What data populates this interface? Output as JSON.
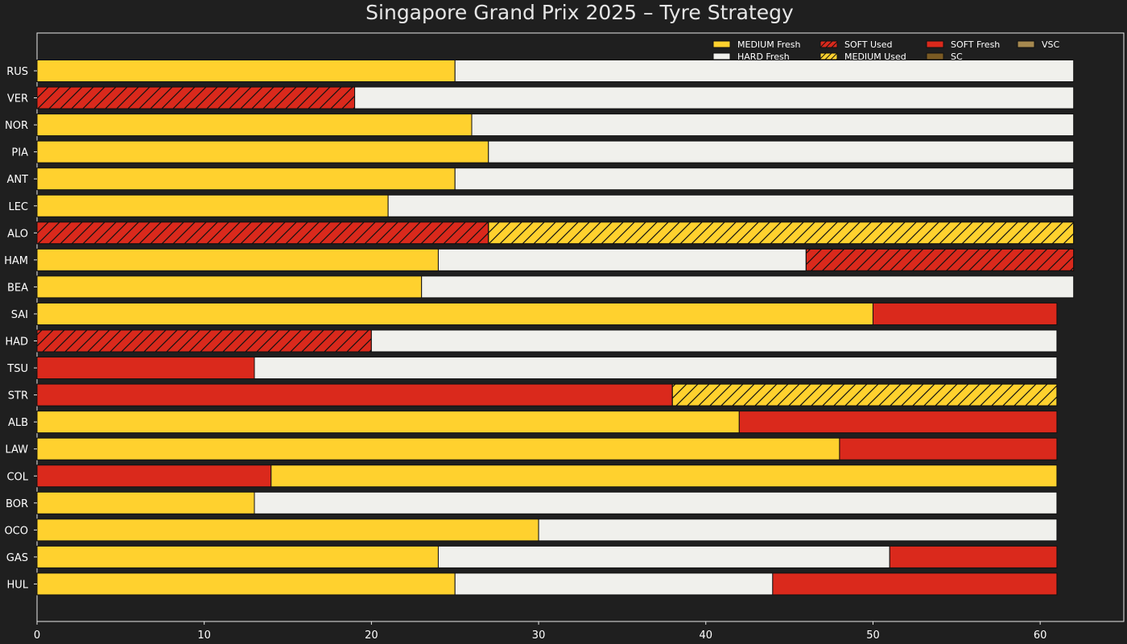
{
  "chart_data": {
    "type": "bar",
    "orientation": "horizontal-stacked",
    "title": "Singapore Grand Prix 2025  –  Tyre Strategy",
    "xlabel": "",
    "ylabel": "",
    "xlim": [
      0,
      65
    ],
    "x_ticks": [
      0,
      10,
      20,
      30,
      40,
      50,
      60
    ],
    "grid": false,
    "legend_position": "top-right",
    "compounds": {
      "MEDIUM": "#ffd12e",
      "HARD": "#f0f0ec",
      "SOFT": "#da291c",
      "SC": "#7a5a23",
      "VSC": "#a6894f"
    },
    "legend": [
      {
        "label": "MEDIUM Fresh",
        "compound": "MEDIUM",
        "used": false
      },
      {
        "label": "HARD Fresh",
        "compound": "HARD",
        "used": false
      },
      {
        "label": "SOFT Used",
        "compound": "SOFT",
        "used": true
      },
      {
        "label": "MEDIUM Used",
        "compound": "MEDIUM",
        "used": true
      },
      {
        "label": "SOFT Fresh",
        "compound": "SOFT",
        "used": false
      },
      {
        "label": "SC",
        "compound": "SC",
        "used": false
      },
      {
        "label": "VSC",
        "compound": "VSC",
        "used": false
      }
    ],
    "drivers": [
      {
        "name": "RUS",
        "stints": [
          {
            "compound": "MEDIUM",
            "used": false,
            "start": 0,
            "end": 25
          },
          {
            "compound": "HARD",
            "used": false,
            "start": 25,
            "end": 62
          }
        ]
      },
      {
        "name": "VER",
        "stints": [
          {
            "compound": "SOFT",
            "used": true,
            "start": 0,
            "end": 19
          },
          {
            "compound": "HARD",
            "used": false,
            "start": 19,
            "end": 62
          }
        ]
      },
      {
        "name": "NOR",
        "stints": [
          {
            "compound": "MEDIUM",
            "used": false,
            "start": 0,
            "end": 26
          },
          {
            "compound": "HARD",
            "used": false,
            "start": 26,
            "end": 62
          }
        ]
      },
      {
        "name": "PIA",
        "stints": [
          {
            "compound": "MEDIUM",
            "used": false,
            "start": 0,
            "end": 27
          },
          {
            "compound": "HARD",
            "used": false,
            "start": 27,
            "end": 62
          }
        ]
      },
      {
        "name": "ANT",
        "stints": [
          {
            "compound": "MEDIUM",
            "used": false,
            "start": 0,
            "end": 25
          },
          {
            "compound": "HARD",
            "used": false,
            "start": 25,
            "end": 62
          }
        ]
      },
      {
        "name": "LEC",
        "stints": [
          {
            "compound": "MEDIUM",
            "used": false,
            "start": 0,
            "end": 21
          },
          {
            "compound": "HARD",
            "used": false,
            "start": 21,
            "end": 62
          }
        ]
      },
      {
        "name": "ALO",
        "stints": [
          {
            "compound": "SOFT",
            "used": true,
            "start": 0,
            "end": 27
          },
          {
            "compound": "MEDIUM",
            "used": true,
            "start": 27,
            "end": 62
          }
        ]
      },
      {
        "name": "HAM",
        "stints": [
          {
            "compound": "MEDIUM",
            "used": false,
            "start": 0,
            "end": 24
          },
          {
            "compound": "HARD",
            "used": false,
            "start": 24,
            "end": 46
          },
          {
            "compound": "SOFT",
            "used": true,
            "start": 46,
            "end": 62
          }
        ]
      },
      {
        "name": "BEA",
        "stints": [
          {
            "compound": "MEDIUM",
            "used": false,
            "start": 0,
            "end": 23
          },
          {
            "compound": "HARD",
            "used": false,
            "start": 23,
            "end": 62
          }
        ]
      },
      {
        "name": "SAI",
        "stints": [
          {
            "compound": "MEDIUM",
            "used": false,
            "start": 0,
            "end": 50
          },
          {
            "compound": "SOFT",
            "used": false,
            "start": 50,
            "end": 61
          }
        ]
      },
      {
        "name": "HAD",
        "stints": [
          {
            "compound": "SOFT",
            "used": true,
            "start": 0,
            "end": 20
          },
          {
            "compound": "HARD",
            "used": false,
            "start": 20,
            "end": 61
          }
        ]
      },
      {
        "name": "TSU",
        "stints": [
          {
            "compound": "SOFT",
            "used": false,
            "start": 0,
            "end": 13
          },
          {
            "compound": "HARD",
            "used": false,
            "start": 13,
            "end": 61
          }
        ]
      },
      {
        "name": "STR",
        "stints": [
          {
            "compound": "SOFT",
            "used": false,
            "start": 0,
            "end": 38
          },
          {
            "compound": "MEDIUM",
            "used": true,
            "start": 38,
            "end": 61
          }
        ]
      },
      {
        "name": "ALB",
        "stints": [
          {
            "compound": "MEDIUM",
            "used": false,
            "start": 0,
            "end": 42
          },
          {
            "compound": "SOFT",
            "used": false,
            "start": 42,
            "end": 61
          }
        ]
      },
      {
        "name": "LAW",
        "stints": [
          {
            "compound": "MEDIUM",
            "used": false,
            "start": 0,
            "end": 48
          },
          {
            "compound": "SOFT",
            "used": false,
            "start": 48,
            "end": 61
          }
        ]
      },
      {
        "name": "COL",
        "stints": [
          {
            "compound": "SOFT",
            "used": false,
            "start": 0,
            "end": 14
          },
          {
            "compound": "MEDIUM",
            "used": false,
            "start": 14,
            "end": 61
          }
        ]
      },
      {
        "name": "BOR",
        "stints": [
          {
            "compound": "MEDIUM",
            "used": false,
            "start": 0,
            "end": 13
          },
          {
            "compound": "HARD",
            "used": false,
            "start": 13,
            "end": 61
          }
        ]
      },
      {
        "name": "OCO",
        "stints": [
          {
            "compound": "MEDIUM",
            "used": false,
            "start": 0,
            "end": 30
          },
          {
            "compound": "HARD",
            "used": false,
            "start": 30,
            "end": 61
          }
        ]
      },
      {
        "name": "GAS",
        "stints": [
          {
            "compound": "MEDIUM",
            "used": false,
            "start": 0,
            "end": 24
          },
          {
            "compound": "HARD",
            "used": false,
            "start": 24,
            "end": 51
          },
          {
            "compound": "SOFT",
            "used": false,
            "start": 51,
            "end": 61
          }
        ]
      },
      {
        "name": "HUL",
        "stints": [
          {
            "compound": "MEDIUM",
            "used": false,
            "start": 0,
            "end": 25
          },
          {
            "compound": "HARD",
            "used": false,
            "start": 25,
            "end": 44
          },
          {
            "compound": "SOFT",
            "used": false,
            "start": 44,
            "end": 61
          }
        ]
      }
    ]
  }
}
